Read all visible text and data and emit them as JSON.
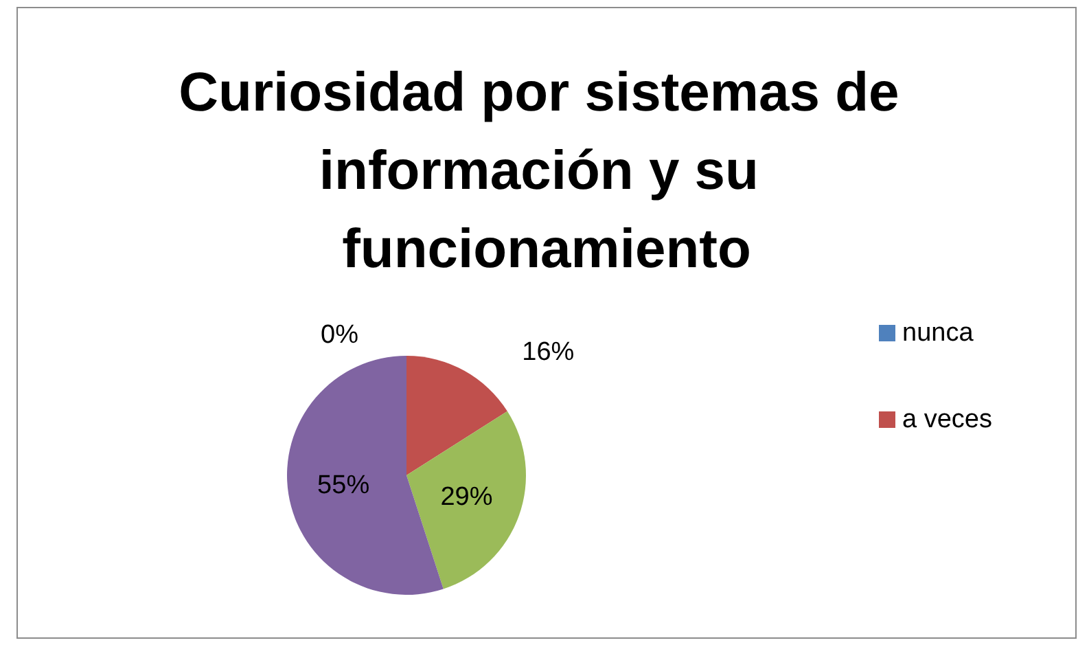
{
  "chart_data": {
    "type": "pie",
    "title": "Curiosidad por sistemas de información y su funcionamiento",
    "categories": [
      "nunca",
      "a veces",
      null,
      null
    ],
    "values": [
      0,
      16,
      29,
      55
    ],
    "colors": [
      "#4f81bd",
      "#c0504d",
      "#9bbb59",
      "#8064a2"
    ],
    "value_labels": [
      "0%",
      "16%",
      "29%",
      "55%"
    ],
    "legend": "right"
  }
}
